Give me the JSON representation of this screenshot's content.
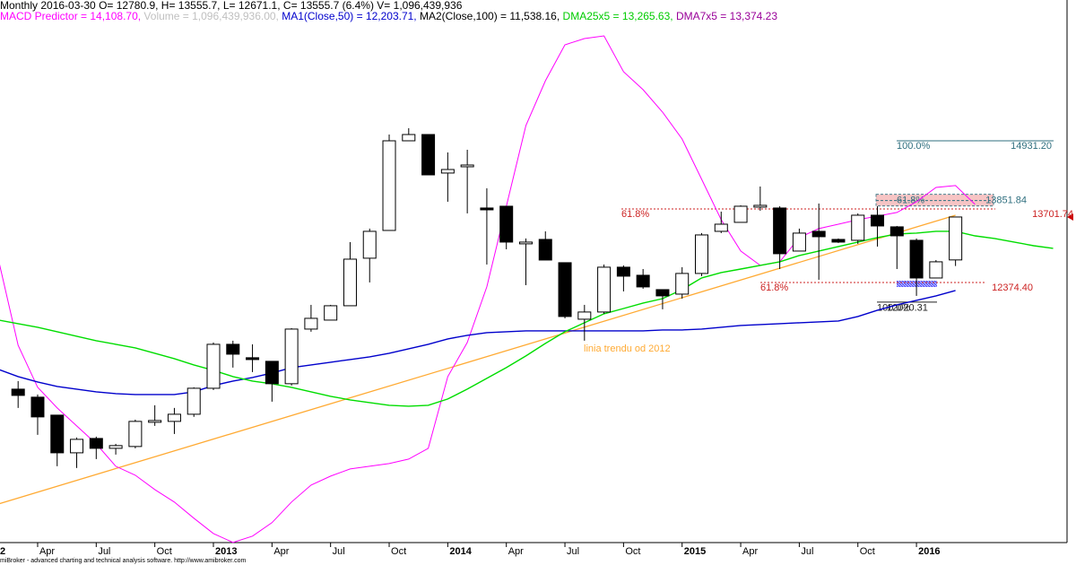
{
  "chart_data": {
    "type": "candlestick",
    "title": "Monthly 2016-03-30 O= 12780.9, H= 13555.7, L= 12671.1, C= 13555.7 (6.4%) V= 1,096,439,936",
    "indicators": [
      {
        "text": "MACD Predictor = 14,108.70, ",
        "color": "#ff00ff"
      },
      {
        "text": "Volume = 1,096,439,936.00, ",
        "color": "#c0c0c0"
      },
      {
        "text": "MA1(Close,50) = 12,203.71, ",
        "color": "#0000cc"
      },
      {
        "text": "MA2(Close,100) = 11,538.16, ",
        "color": "#000000"
      },
      {
        "text": "DMA25x5 = 13,265.63, ",
        "color": "#00cc00"
      },
      {
        "text": "DMA7x5 = 13,374.23",
        "color": "#990099"
      }
    ],
    "footer": "miBroker - advanced charting and technical analysis software. http://www.amibroker.com",
    "x": [
      "2012-01",
      "2012-02",
      "2012-03",
      "2012-04",
      "2012-05",
      "2012-06",
      "2012-07",
      "2012-08",
      "2012-09",
      "2012-10",
      "2012-11",
      "2012-12",
      "2013-01",
      "2013-02",
      "2013-03",
      "2013-04",
      "2013-05",
      "2013-06",
      "2013-07",
      "2013-08",
      "2013-09",
      "2013-10",
      "2013-11",
      "2013-12",
      "2014-01",
      "2014-02",
      "2014-03",
      "2014-04",
      "2014-05",
      "2014-06",
      "2014-07",
      "2014-08",
      "2014-09",
      "2014-10",
      "2014-11",
      "2014-12",
      "2015-01",
      "2015-02",
      "2015-03",
      "2015-04",
      "2015-05",
      "2015-06",
      "2015-07",
      "2015-08",
      "2015-09",
      "2015-10",
      "2015-11",
      "2015-12",
      "2016-01",
      "2016-02",
      "2016-03",
      "2016-04",
      "2016-05",
      "2016-06",
      "2016-07",
      "2016-08"
    ],
    "open": [
      null,
      null,
      10449,
      10304,
      9980,
      9300,
      9559,
      9381,
      9414,
      9851,
      9867,
      9996,
      10465,
      11258,
      11016,
      10951,
      10547,
      11533,
      11695,
      11954,
      12812,
      13313,
      14931,
      15044,
      14349,
      14462,
      13718,
      13750,
      13071,
      13151,
      12731,
      11711,
      11841,
      12650,
      12504,
      12245,
      12164,
      12537,
      13297,
      13459,
      13734,
      13718,
      12941,
      13297,
      13151,
      13135,
      13588,
      13378,
      13135,
      12455,
      12780.9,
      null,
      null,
      null,
      null,
      null
    ],
    "high": [
      null,
      null,
      10595,
      10352,
      9980,
      9576,
      9592,
      9462,
      9899,
      10158,
      10110,
      10482,
      11291,
      11323,
      11258,
      10951,
      11550,
      11970,
      11970,
      13103,
      13346,
      15044,
      15158,
      15044,
      14721,
      14769,
      14074,
      13750,
      13168,
      13297,
      12731,
      11970,
      12698,
      12682,
      12617,
      12245,
      12650,
      13265,
      13653,
      13766,
      14106,
      13750,
      13346,
      13799,
      13168,
      13621,
      13750,
      13394,
      13168,
      12779,
      13555.7,
      null,
      null,
      null,
      null,
      null
    ],
    "low": [
      null,
      null,
      10110,
      9624,
      9058,
      9026,
      9187,
      9268,
      9381,
      9786,
      9640,
      9948,
      10433,
      10838,
      10757,
      10223,
      10514,
      11485,
      11695,
      11954,
      12375,
      13313,
      14931,
      14316,
      13831,
      13621,
      12698,
      12973,
      12326,
      12779,
      11727,
      11323,
      11808,
      12213,
      12261,
      11890,
      12083,
      12488,
      13265,
      13459,
      13669,
      12617,
      12941,
      12423,
      13087,
      13071,
      13022,
      12617,
      12132,
      12455,
      12671.1,
      null,
      null,
      null,
      null,
      null
    ],
    "close": [
      null,
      null,
      10336,
      9948,
      9300,
      9543,
      9381,
      9430,
      9867,
      9883,
      9996,
      10465,
      11258,
      11080,
      10983,
      10547,
      11533,
      11727,
      11954,
      12795,
      13297,
      14931,
      15044,
      14316,
      14413,
      14494,
      13685,
      13103,
      13103,
      12779,
      11760,
      11841,
      12650,
      12488,
      12294,
      12132,
      12537,
      13232,
      13426,
      13750,
      13766,
      12893,
      13265,
      13200,
      13103,
      13588,
      13394,
      13216,
      12455,
      12747,
      13555.7,
      null,
      null,
      null,
      null,
      null
    ],
    "up_color": "#ffffff",
    "down_color": "#000000",
    "series": [
      {
        "color": "#ff00ff",
        "values": [
          null,
          12779,
          11242,
          10482,
          10110,
          9786,
          9462,
          9058,
          8896,
          8637,
          8411,
          8120,
          7844,
          7683,
          7796,
          8039,
          8411,
          8718,
          8880,
          9009,
          9058,
          9106,
          9187,
          9381,
          10676,
          11291,
          12294,
          13750,
          15206,
          16015,
          16662,
          16776,
          16824,
          16177,
          15853,
          15449,
          14964,
          14236,
          13507,
          12941,
          12682,
          12747,
          13184,
          13346,
          13426,
          13507,
          13572,
          13637,
          13831,
          14090,
          14124,
          13783,
          null,
          null,
          null,
          null
        ]
      },
      {
        "color": "#0000cc",
        "values": [
          10919,
          10805,
          10676,
          10579,
          10498,
          10449,
          10401,
          10368,
          10352,
          10352,
          10352,
          10401,
          10514,
          10595,
          10660,
          10740,
          10838,
          10886,
          10935,
          10983,
          11032,
          11097,
          11177,
          11258,
          11355,
          11420,
          11469,
          11485,
          11501,
          11501,
          11501,
          11501,
          11501,
          11501,
          11501,
          11517,
          11517,
          11533,
          11566,
          11598,
          11614,
          11631,
          11647,
          11663,
          11679,
          11760,
          11873,
          11970,
          12051,
          12132,
          12229,
          null,
          null,
          null,
          null,
          null
        ]
      },
      {
        "color": "#00dd00",
        "values": [
          11776,
          11695,
          11631,
          11566,
          11485,
          11404,
          11323,
          11258,
          11194,
          11097,
          11000,
          10886,
          10789,
          10676,
          10595,
          10547,
          10482,
          10401,
          10320,
          10255,
          10207,
          10158,
          10142,
          10158,
          10271,
          10449,
          10644,
          10838,
          11048,
          11275,
          11485,
          11647,
          11808,
          11905,
          12003,
          12083,
          12245,
          12456,
          12553,
          12617,
          12682,
          12747,
          12860,
          12941,
          13022,
          13103,
          13184,
          13249,
          13265,
          13297,
          13297,
          13216,
          13168,
          13103,
          13038,
          12990
        ]
      }
    ],
    "trendline": {
      "label": "linia trendu od 2012",
      "color": "#ffaa33",
      "x": [
        "2012-02",
        "2016-03"
      ],
      "values": [
        8378,
        13588
      ]
    },
    "levels": [
      {
        "value": 14931.2,
        "label": "14931.20",
        "pct": "100.0%",
        "color": "#2f6f7f"
      },
      {
        "value": 13851.84,
        "label": "13851.84",
        "pct": "61.8%",
        "color": "#2f6f7f"
      },
      {
        "value": 13701.74,
        "label": "13701.74",
        "pct": "61.8%",
        "color": "#cc2222"
      },
      {
        "value": 12374.4,
        "label": "12374.40",
        "pct": "61.8%",
        "color": "#cc2222"
      },
      {
        "value": 12020.31,
        "label": "12020.31",
        "pct": "100.0%",
        "color": "#222222"
      }
    ],
    "ylim": [
      7680,
      17310
    ],
    "xticks": [
      {
        "value": "2012-01",
        "label": "2"
      },
      {
        "value": "2012-04",
        "label": "Apr"
      },
      {
        "value": "2012-07",
        "label": "Jul"
      },
      {
        "value": "2012-10",
        "label": "Oct"
      },
      {
        "value": "2013-01",
        "label": "2013"
      },
      {
        "value": "2013-04",
        "label": "Apr"
      },
      {
        "value": "2013-07",
        "label": "Jul"
      },
      {
        "value": "2013-10",
        "label": "Oct"
      },
      {
        "value": "2014-01",
        "label": "2014"
      },
      {
        "value": "2014-04",
        "label": "Apr"
      },
      {
        "value": "2014-07",
        "label": "Jul"
      },
      {
        "value": "2014-10",
        "label": "Oct"
      },
      {
        "value": "2015-01",
        "label": "2015"
      },
      {
        "value": "2015-04",
        "label": "Apr"
      },
      {
        "value": "2015-07",
        "label": "Jul"
      },
      {
        "value": "2015-10",
        "label": "Oct"
      },
      {
        "value": "2016-01",
        "label": "2016"
      }
    ]
  }
}
